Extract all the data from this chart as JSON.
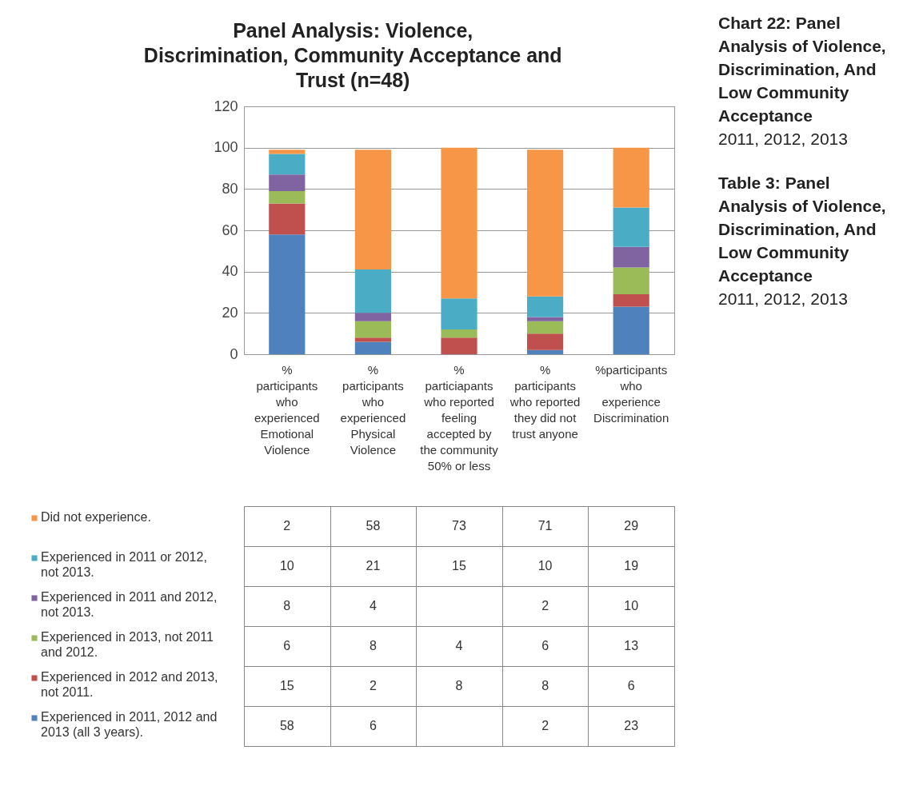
{
  "chart_data": {
    "type": "bar",
    "stacked": true,
    "title": "Panel Analysis: Violence,  Discrimination, Community Acceptance and Trust (n=48)",
    "categories": [
      "% participants who experienced Emotional Violence",
      "% participants who experienced Physical Violence",
      "% particiapants who reported feeling accepted by the community 50% or less",
      "% participants who reported they did not trust anyone",
      "%participants who experience Discrimination"
    ],
    "series": [
      {
        "name": "Experienced in 2011, 2012 and 2013 (all 3 years).",
        "color": "#4f81bd",
        "values": [
          58,
          6,
          null,
          2,
          23
        ]
      },
      {
        "name": "Experienced in 2012 and 2013, not 2011.",
        "color": "#c0504d",
        "values": [
          15,
          2,
          8,
          8,
          6
        ]
      },
      {
        "name": "Experienced in 2013, not 2011 and 2012.",
        "color": "#9bbb59",
        "values": [
          6,
          8,
          4,
          6,
          13
        ]
      },
      {
        "name": "Experienced in 2011 and 2012, not 2013.",
        "color": "#8064a2",
        "values": [
          8,
          4,
          null,
          2,
          10
        ]
      },
      {
        "name": "Experienced in 2011 or 2012, not 2013.",
        "color": "#4bacc6",
        "values": [
          10,
          21,
          15,
          10,
          19
        ]
      },
      {
        "name": "Did not experience.",
        "color": "#f79646",
        "values": [
          2,
          58,
          73,
          71,
          29
        ]
      }
    ],
    "ylim": [
      0,
      120
    ],
    "yticks": [
      0,
      20,
      40,
      60,
      80,
      100,
      120
    ],
    "grid": "y",
    "legend": "bottom",
    "data_labels": true,
    "annotations": [
      "Chart 22:  Panel Analysis of Violence, Discrimination, And Low Community Acceptance",
      "2011, 2012, 2013",
      "Table 3:  Panel Analysis of Violence, Discrimination, And Low Community Acceptance",
      "2011, 2012, 2013"
    ]
  }
}
